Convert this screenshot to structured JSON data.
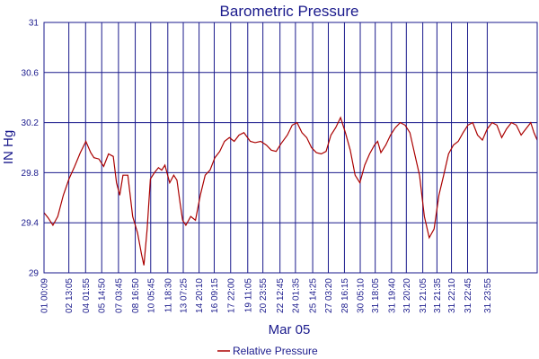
{
  "chart_data": {
    "type": "line",
    "title": "Barometric Pressure",
    "xlabel": "Mar 05",
    "ylabel": "IN Hg",
    "ylim": [
      29,
      31
    ],
    "yticks": [
      29,
      29.4,
      29.8,
      30.2,
      30.6,
      31
    ],
    "ytick_labels": [
      "29",
      "29.4",
      "29.8",
      "30.2",
      "30.6",
      "31"
    ],
    "xlim": [
      0,
      30.6
    ],
    "xticks": [
      0,
      1.54,
      2.58,
      3.58,
      4.62,
      5.66,
      6.62,
      7.68,
      8.64,
      9.62,
      10.56,
      11.58,
      12.64,
      13.58,
      14.64,
      15.6,
      16.67,
      17.64,
      18.64,
      19.62,
      20.55,
      21.56,
      22.48,
      23.5,
      24.38,
      25.28,
      26.28,
      27.5
    ],
    "xtick_labels": [
      "01 00:09",
      "02 13:05",
      "04 01:55",
      "05 14:50",
      "07 03:45",
      "08 16:50",
      "10 05:45",
      "11 18:30",
      "13 07:25",
      "14 20:10",
      "16 09:15",
      "17 22:00",
      "19 11:05",
      "20 23:55",
      "22 12:45",
      "24 01:35",
      "25 14:25",
      "27 03:20",
      "28 16:15",
      "30 05:10",
      "31 18:05",
      "31 19:40",
      "31 20:20",
      "31 21:05",
      "31 21:35",
      "31 22:10",
      "31 22:45",
      "31 23:55"
    ],
    "grid": true,
    "legend_position": "bottom-center",
    "series": [
      {
        "name": "Relative Pressure",
        "color": "#aa0000",
        "x": [
          0,
          0.25,
          0.55,
          0.85,
          1.2,
          1.55,
          1.9,
          2.25,
          2.6,
          2.9,
          3.1,
          3.4,
          3.7,
          4.0,
          4.3,
          4.5,
          4.7,
          4.9,
          5.2,
          5.5,
          5.8,
          6.05,
          6.2,
          6.4,
          6.6,
          6.85,
          7.1,
          7.3,
          7.5,
          7.8,
          8.05,
          8.25,
          8.45,
          8.6,
          8.8,
          9.1,
          9.4,
          9.7,
          10.0,
          10.3,
          10.6,
          10.9,
          11.2,
          11.5,
          11.8,
          12.1,
          12.4,
          12.8,
          13.1,
          13.45,
          13.8,
          14.1,
          14.4,
          14.7,
          15.1,
          15.4,
          15.7,
          16.0,
          16.3,
          16.6,
          16.9,
          17.2,
          17.5,
          17.8,
          18.1,
          18.4,
          18.7,
          19.0,
          19.3,
          19.6,
          19.9,
          20.2,
          20.5,
          20.7,
          20.9,
          21.2,
          21.5,
          21.8,
          22.1,
          22.4,
          22.7,
          23.0,
          23.3,
          23.6,
          23.9,
          24.2,
          24.5,
          24.8,
          25.1,
          25.4,
          25.7,
          26.0,
          26.3,
          26.6,
          26.9,
          27.2,
          27.5,
          27.8,
          28.1,
          28.4,
          28.7,
          29.0,
          29.3,
          29.6,
          29.9,
          30.2,
          30.4,
          30.6
        ],
        "values": [
          29.48,
          29.44,
          29.38,
          29.45,
          29.62,
          29.75,
          29.85,
          29.96,
          30.05,
          29.96,
          29.92,
          29.91,
          29.85,
          29.95,
          29.93,
          29.72,
          29.62,
          29.78,
          29.78,
          29.45,
          29.32,
          29.15,
          29.06,
          29.35,
          29.75,
          29.8,
          29.84,
          29.82,
          29.86,
          29.72,
          29.78,
          29.74,
          29.55,
          29.42,
          29.38,
          29.45,
          29.42,
          29.62,
          29.78,
          29.82,
          29.92,
          29.97,
          30.05,
          30.08,
          30.05,
          30.1,
          30.12,
          30.05,
          30.04,
          30.05,
          30.02,
          29.98,
          29.97,
          30.03,
          30.1,
          30.18,
          30.2,
          30.12,
          30.08,
          30.0,
          29.96,
          29.95,
          29.97,
          30.1,
          30.16,
          30.24,
          30.12,
          29.98,
          29.78,
          29.72,
          29.86,
          29.95,
          30.02,
          30.05,
          29.96,
          30.02,
          30.1,
          30.16,
          30.2,
          30.18,
          30.12,
          29.95,
          29.78,
          29.45,
          29.28,
          29.35,
          29.62,
          29.78,
          29.95,
          30.02,
          30.05,
          30.12,
          30.18,
          30.2,
          30.1,
          30.06,
          30.15,
          30.2,
          30.18,
          30.08,
          30.15,
          30.2,
          30.18,
          30.1,
          30.15,
          30.2,
          30.12,
          30.06
        ]
      }
    ]
  }
}
